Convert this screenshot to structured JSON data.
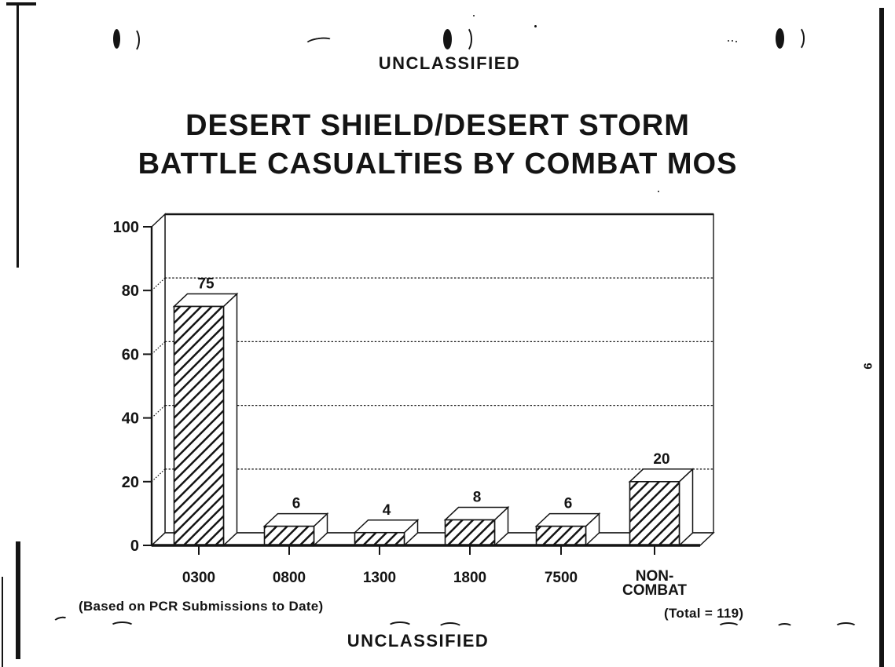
{
  "page": {
    "classification_top": "UNCLASSIFIED",
    "classification_bottom": "UNCLASSIFIED",
    "footnote": "(Based on PCR Submissions to Date)",
    "total_note": "(Total = 119)",
    "side_page_number": "9"
  },
  "title": {
    "line1": "DESERT SHIELD/DESERT STORM",
    "line2": "BATTLE CASUALTIES BY COMBAT MOS"
  },
  "chart_data": {
    "type": "bar",
    "projection": "3d-oblique",
    "title": "DESERT SHIELD/DESERT STORM BATTLE CASUALTIES BY COMBAT MOS",
    "categories": [
      "0300",
      "0800",
      "1300",
      "1800",
      "7500",
      "NON-COMBAT"
    ],
    "category_display_lines": [
      [
        "0300"
      ],
      [
        "0800"
      ],
      [
        "1300"
      ],
      [
        "1800"
      ],
      [
        "7500"
      ],
      [
        "NON-",
        "COMBAT"
      ]
    ],
    "values": [
      75,
      6,
      4,
      8,
      6,
      20
    ],
    "data_labels": [
      "75",
      "6",
      "4",
      "8",
      "6",
      "20"
    ],
    "y_ticks": [
      0,
      20,
      40,
      60,
      80,
      100
    ],
    "y_tick_labels": [
      "0",
      "20",
      "40",
      "60",
      "80",
      "100"
    ],
    "ylim": [
      0,
      100
    ],
    "grid": true,
    "legend": "none",
    "bar_fill": "diagonal-hatch",
    "ink_color": "#141414",
    "total": 119,
    "footnote": "(Based on PCR Submissions to Date)",
    "total_note": "(Total = 119)"
  }
}
